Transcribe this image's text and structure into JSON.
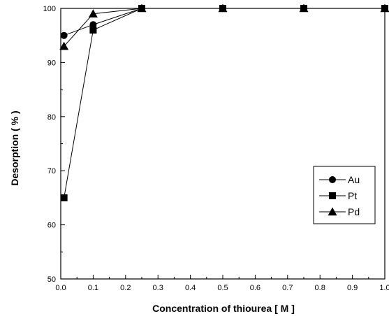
{
  "chart_data": {
    "type": "line",
    "title": "",
    "xlabel": "Concentration of thiourea [ M ]",
    "ylabel": "Desorption ( % )",
    "xlim": [
      0.0,
      1.0
    ],
    "ylim": [
      50,
      100
    ],
    "x_ticks": [
      "0.0",
      "0.1",
      "0.2",
      "0.3",
      "0.4",
      "0.5",
      "0.6",
      "0.7",
      "0.8",
      "0.9",
      "1.0"
    ],
    "y_ticks": [
      "50",
      "60",
      "70",
      "80",
      "90",
      "100"
    ],
    "grid": false,
    "legend_position": "right",
    "series": [
      {
        "name": "Au",
        "marker": "circle",
        "x": [
          0.01,
          0.1,
          0.25,
          0.5,
          0.75,
          1.0
        ],
        "y": [
          95,
          97,
          100,
          100,
          100,
          100
        ]
      },
      {
        "name": "Pt",
        "marker": "square",
        "x": [
          0.01,
          0.1,
          0.25,
          0.5,
          0.75,
          1.0
        ],
        "y": [
          65,
          96,
          100,
          100,
          100,
          100
        ]
      },
      {
        "name": "Pd",
        "marker": "triangle",
        "x": [
          0.01,
          0.1,
          0.25,
          0.5,
          0.75,
          1.0
        ],
        "y": [
          93,
          99,
          100,
          100,
          100,
          100
        ]
      }
    ]
  }
}
